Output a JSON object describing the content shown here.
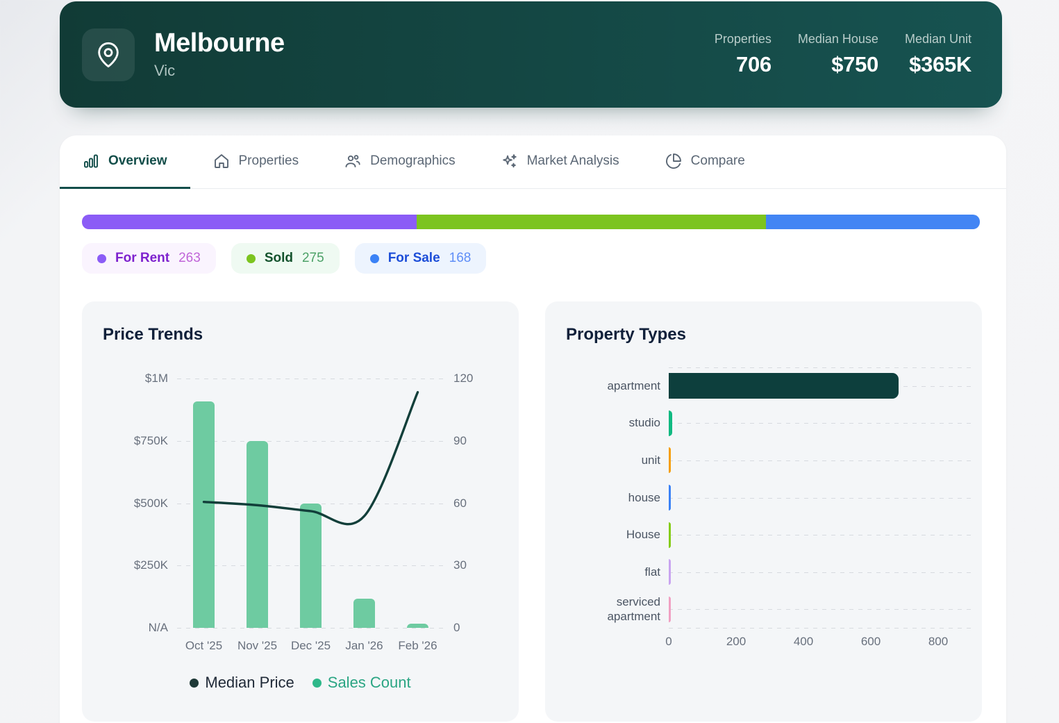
{
  "header": {
    "icon": "map-pin-icon",
    "location_name": "Melbourne",
    "state": "Vic",
    "bg_from": "#113b36",
    "bg_to": "#175351",
    "stats": [
      {
        "label": "Properties",
        "value": "706"
      },
      {
        "label": "Median House",
        "value": "$750"
      },
      {
        "label": "Median Unit",
        "value": "$365K"
      }
    ]
  },
  "tabs": [
    {
      "label": "Overview",
      "icon": "bar-chart-icon",
      "active": true
    },
    {
      "label": "Properties",
      "icon": "home-icon",
      "active": false
    },
    {
      "label": "Demographics",
      "icon": "users-icon",
      "active": false
    },
    {
      "label": "Market Analysis",
      "icon": "sparkles-icon",
      "active": false
    },
    {
      "label": "Compare",
      "icon": "pie-chart-icon",
      "active": false
    }
  ],
  "distribution": {
    "items": [
      {
        "label": "For Rent",
        "count": 263,
        "bar_color": "#8b5cf6",
        "dot_color": "#8b5cf6",
        "text_color": "#7e22ce",
        "count_color": "#c064d8",
        "chip_bg": "#faf4fe"
      },
      {
        "label": "Sold",
        "count": 275,
        "bar_color": "#7cc41f",
        "dot_color": "#7cc41f",
        "text_color": "#14532d",
        "count_color": "#4ca167",
        "chip_bg": "#effaf2"
      },
      {
        "label": "For Sale",
        "count": 168,
        "bar_color": "#4285f4",
        "dot_color": "#3b82f6",
        "text_color": "#1d4ed8",
        "count_color": "#5f8ef7",
        "chip_bg": "#edf4fe"
      }
    ]
  },
  "chart_data": [
    {
      "type": "bar",
      "title": "Price Trends",
      "categories": [
        "Oct '25",
        "Nov '25",
        "Dec '25",
        "Jan '26",
        "Feb '26"
      ],
      "series": [
        {
          "name": "Median Price",
          "type": "line",
          "axis": "left",
          "values": [
            505000,
            492000,
            468000,
            448000,
            945000
          ],
          "color": "#123f3a"
        },
        {
          "name": "Sales Count",
          "type": "bar",
          "axis": "right",
          "values": [
            109,
            90,
            60,
            14,
            2
          ],
          "color": "#6ecba1"
        }
      ],
      "left_axis": {
        "ticks": [
          "$1M",
          "$750K",
          "$500K",
          "$250K",
          "N/A"
        ],
        "min": 0,
        "max": 1000000
      },
      "right_axis": {
        "ticks": [
          "120",
          "90",
          "60",
          "30",
          "0"
        ],
        "min": 0,
        "max": 120
      },
      "grid": "dashed-horizontal",
      "legend_position": "bottom",
      "legend": [
        {
          "label": "Median Price",
          "color": "#1e3937",
          "text_color": "#1f2937"
        },
        {
          "label": "Sales Count",
          "color": "#2eb88a",
          "text_color": "#2aa583"
        }
      ]
    },
    {
      "type": "bar",
      "orientation": "horizontal",
      "title": "Property Types",
      "categories": [
        "apartment",
        "studio",
        "unit",
        "house",
        "House",
        "flat",
        "serviced apartment"
      ],
      "values": [
        682,
        10,
        6,
        5,
        4,
        2,
        2
      ],
      "colors": [
        "#0d3f3d",
        "#10b981",
        "#f59e0b",
        "#3b82f6",
        "#84cc16",
        "#c9a4f0",
        "#f0a0c2"
      ],
      "xlabel": "",
      "ylabel": "",
      "xlim": [
        0,
        800
      ],
      "xticks": [
        "0",
        "200",
        "400",
        "600",
        "800"
      ],
      "grid": "dashed-horizontal"
    }
  ]
}
